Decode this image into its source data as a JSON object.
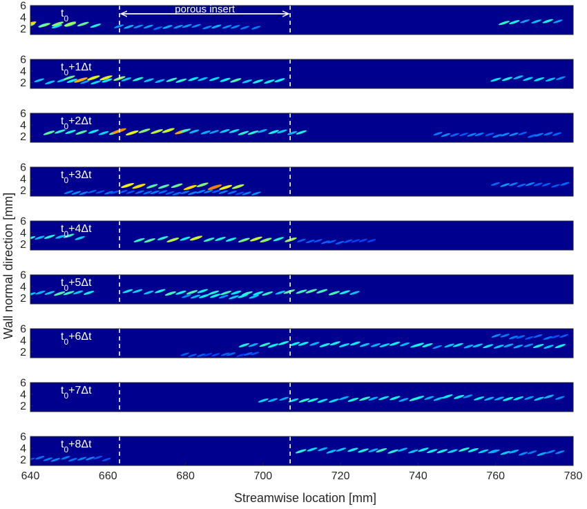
{
  "chart_data": {
    "type": "heatmap",
    "xlabel": "Streamwise location [mm]",
    "ylabel": "Wall normal direction [mm]",
    "xlim": [
      640,
      780
    ],
    "ylim": [
      1,
      6
    ],
    "x_ticks": [
      640,
      660,
      680,
      700,
      720,
      740,
      760,
      780
    ],
    "y_ticks": [
      2,
      4,
      6
    ],
    "colormap": "jet",
    "grid": false,
    "porous_insert": {
      "label": "porous insert",
      "x_start": 663,
      "x_end": 707
    },
    "panels": [
      {
        "label_base": "t",
        "label_sub": "0",
        "label_suffix": "",
        "streaks": [
          {
            "x0": 640,
            "x1": 660,
            "y": 2.6,
            "int": 0.55,
            "len": 3.4
          },
          {
            "x0": 640,
            "x1": 653,
            "y": 2.8,
            "int": 0.85,
            "len": 3.4
          },
          {
            "x0": 663,
            "x1": 700,
            "y": 2.3,
            "int": 0.25,
            "len": 2.5
          },
          {
            "x0": 762,
            "x1": 778,
            "y": 3.2,
            "int": 0.4,
            "len": 2.8
          }
        ]
      },
      {
        "label_base": "t",
        "label_sub": "0",
        "label_suffix": "+1Δt",
        "streaks": [
          {
            "x0": 642,
            "x1": 663,
            "y": 2.2,
            "int": 0.35,
            "len": 3.0
          },
          {
            "x0": 650,
            "x1": 665,
            "y": 2.6,
            "int": 0.8,
            "len": 3.2
          },
          {
            "x0": 665,
            "x1": 705,
            "y": 2.4,
            "int": 0.45,
            "len": 2.8
          },
          {
            "x0": 760,
            "x1": 778,
            "y": 2.7,
            "int": 0.35,
            "len": 2.8
          }
        ]
      },
      {
        "label_base": "t",
        "label_sub": "0",
        "label_suffix": "+2Δt",
        "streaks": [
          {
            "x0": 645,
            "x1": 663,
            "y": 2.7,
            "int": 0.45,
            "len": 2.8
          },
          {
            "x0": 663,
            "x1": 680,
            "y": 2.8,
            "int": 0.85,
            "len": 3.2
          },
          {
            "x0": 680,
            "x1": 712,
            "y": 2.8,
            "int": 0.4,
            "len": 2.5
          },
          {
            "x0": 745,
            "x1": 778,
            "y": 2.3,
            "int": 0.2,
            "len": 2.2
          }
        ]
      },
      {
        "label_base": "t",
        "label_sub": "0",
        "label_suffix": "+3Δt",
        "streaks": [
          {
            "x0": 665,
            "x1": 697,
            "y": 2.7,
            "int": 0.8,
            "len": 3.2
          },
          {
            "x0": 650,
            "x1": 700,
            "y": 1.6,
            "int": 0.2,
            "len": 2.0
          },
          {
            "x0": 760,
            "x1": 778,
            "y": 3.0,
            "int": 0.22,
            "len": 2.2
          }
        ]
      },
      {
        "label_base": "t",
        "label_sub": "0",
        "label_suffix": "+4Δt",
        "streaks": [
          {
            "x0": 668,
            "x1": 710,
            "y": 2.8,
            "int": 0.6,
            "len": 3.0
          },
          {
            "x0": 640,
            "x1": 655,
            "y": 3.2,
            "int": 0.4,
            "len": 2.5
          },
          {
            "x0": 710,
            "x1": 730,
            "y": 2.5,
            "int": 0.15,
            "len": 2.0
          }
        ]
      },
      {
        "label_base": "t",
        "label_sub": "0",
        "label_suffix": "+5Δt",
        "streaks": [
          {
            "x0": 665,
            "x1": 725,
            "y": 3.0,
            "int": 0.45,
            "len": 2.8
          },
          {
            "x0": 640,
            "x1": 657,
            "y": 2.8,
            "int": 0.45,
            "len": 2.5
          },
          {
            "x0": 680,
            "x1": 700,
            "y": 2.2,
            "int": 0.35,
            "len": 2.5
          }
        ]
      },
      {
        "label_base": "t",
        "label_sub": "0",
        "label_suffix": "+6Δt",
        "streaks": [
          {
            "x0": 695,
            "x1": 740,
            "y": 3.3,
            "int": 0.4,
            "len": 2.6
          },
          {
            "x0": 740,
            "x1": 778,
            "y": 3.0,
            "int": 0.35,
            "len": 2.6
          },
          {
            "x0": 760,
            "x1": 778,
            "y": 4.6,
            "int": 0.2,
            "len": 2.2
          },
          {
            "x0": 680,
            "x1": 700,
            "y": 1.6,
            "int": 0.15,
            "len": 2.0
          }
        ]
      },
      {
        "label_base": "t",
        "label_sub": "0",
        "label_suffix": "+7Δt",
        "streaks": [
          {
            "x0": 700,
            "x1": 740,
            "y": 3.1,
            "int": 0.4,
            "len": 2.6
          },
          {
            "x0": 740,
            "x1": 778,
            "y": 3.4,
            "int": 0.35,
            "len": 2.6
          }
        ]
      },
      {
        "label_base": "t",
        "label_sub": "0",
        "label_suffix": "+8Δt",
        "streaks": [
          {
            "x0": 710,
            "x1": 760,
            "y": 3.6,
            "int": 0.4,
            "len": 2.6
          },
          {
            "x0": 760,
            "x1": 778,
            "y": 3.2,
            "int": 0.3,
            "len": 2.4
          },
          {
            "x0": 640,
            "x1": 660,
            "y": 2.2,
            "int": 0.2,
            "len": 2.2
          }
        ]
      }
    ]
  },
  "colors": {
    "background": "#00008f",
    "guide": "#ffffff",
    "text": "#262626",
    "axis": "#262626"
  }
}
